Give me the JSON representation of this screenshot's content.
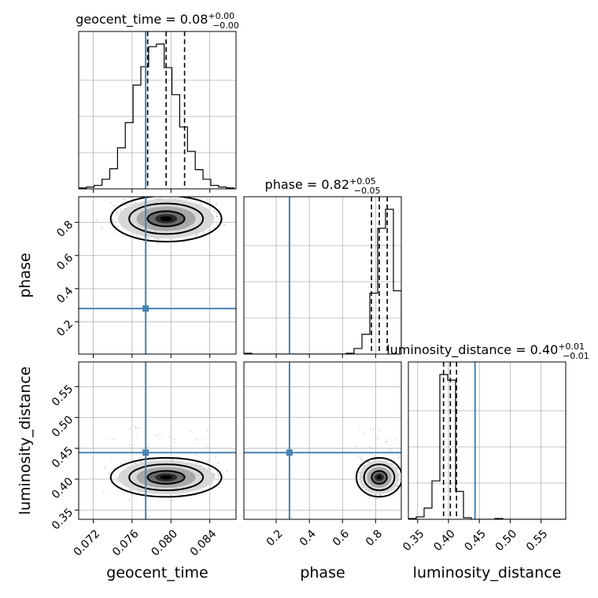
{
  "chart_data": {
    "type": "corner",
    "parameters": [
      "geocent_time",
      "phase",
      "luminosity_distance"
    ],
    "axis_labels": [
      "geocent_time",
      "phase",
      "luminosity_distance"
    ],
    "ranges": [
      [
        0.0705,
        0.0867
      ],
      [
        0.005,
        0.955
      ],
      [
        0.335,
        0.59
      ]
    ],
    "ticks": {
      "geocent_time": [
        0.072,
        0.076,
        0.08,
        0.084
      ],
      "phase": [
        0.2,
        0.4,
        0.6,
        0.8
      ],
      "luminosity_distance": [
        0.35,
        0.4,
        0.45,
        0.5,
        0.55
      ]
    },
    "tick_labels": {
      "geocent_time": [
        "0.072",
        "0.076",
        "0.080",
        "0.084"
      ],
      "phase": [
        "0.2",
        "0.4",
        "0.6",
        "0.8"
      ],
      "luminosity_distance": [
        "0.35",
        "0.40",
        "0.45",
        "0.50",
        "0.55"
      ]
    },
    "truths": [
      0.0774,
      0.28,
      0.443
    ],
    "titles": [
      {
        "label": "geocent_time = 0.08",
        "plus": "+0.00",
        "minus": "−0.00"
      },
      {
        "label": "phase = 0.82",
        "plus": "+0.05",
        "minus": "−0.05"
      },
      {
        "label": "luminosity_distance = 0.40",
        "plus": "+0.01",
        "minus": "−0.01"
      }
    ],
    "quantiles": [
      [
        0.0776,
        0.0795,
        0.0814
      ],
      [
        0.775,
        0.822,
        0.87
      ],
      [
        0.392,
        0.403,
        0.413
      ]
    ],
    "histograms": [
      {
        "edges": [
          0.0705,
          0.0713,
          0.0721,
          0.0729,
          0.0737,
          0.0745,
          0.0753,
          0.0761,
          0.0769,
          0.0777,
          0.0785,
          0.0793,
          0.0801,
          0.0809,
          0.0817,
          0.0825,
          0.0833,
          0.0841,
          0.0849,
          0.0857,
          0.0865
        ],
        "counts": [
          1,
          2,
          4,
          11,
          23,
          47,
          76,
          119,
          140,
          163,
          166,
          139,
          108,
          71,
          43,
          22,
          11,
          4,
          2,
          1
        ]
      },
      {
        "edges": [
          0.005,
          0.0525,
          0.1,
          0.1475,
          0.195,
          0.2425,
          0.29,
          0.3375,
          0.385,
          0.4325,
          0.48,
          0.5275,
          0.575,
          0.6225,
          0.67,
          0.7175,
          0.765,
          0.8125,
          0.86,
          0.9075,
          0.955
        ],
        "counts": [
          1,
          0,
          0,
          0,
          0,
          0,
          0,
          0,
          0,
          0,
          0,
          0,
          0,
          1,
          7,
          25,
          77,
          159,
          183,
          80
        ],
        "overflow": 13
      },
      {
        "edges": [
          0.335,
          0.34775,
          0.3605,
          0.37325,
          0.386,
          0.39875,
          0.4115,
          0.42425,
          0.437,
          0.44975,
          0.4625,
          0.47525,
          0.488,
          0.50075,
          0.5135,
          0.52625,
          0.539,
          0.55175,
          0.5645,
          0.57725,
          0.59
        ],
        "counts": [
          1,
          3,
          14,
          48,
          181,
          174,
          35,
          2,
          0,
          0,
          0,
          1,
          0,
          0,
          0,
          0,
          0,
          0,
          0,
          0
        ]
      }
    ],
    "density_2d": [
      {
        "x_param": "geocent_time",
        "y_param": "phase",
        "center": [
          0.0795,
          0.822
        ],
        "sigma": [
          0.0019,
          0.046
        ],
        "contour_levels": [
          0.393,
          0.865,
          0.989
        ]
      },
      {
        "x_param": "geocent_time",
        "y_param": "luminosity_distance",
        "center": [
          0.0795,
          0.403
        ],
        "sigma": [
          0.0019,
          0.0105
        ],
        "contour_levels": [
          0.393,
          0.865,
          0.989
        ]
      },
      {
        "x_param": "phase",
        "y_param": "luminosity_distance",
        "center": [
          0.822,
          0.403
        ],
        "sigma": [
          0.046,
          0.0105
        ],
        "contour_levels": [
          0.393,
          0.865,
          0.989
        ]
      }
    ],
    "grid": true,
    "colors": {
      "truth": "#4682b4",
      "contour": "#000000",
      "points": "#808080",
      "grid": "#b0b0b0"
    }
  }
}
